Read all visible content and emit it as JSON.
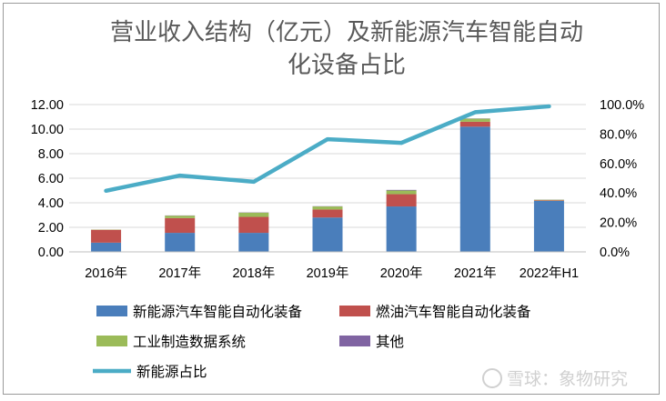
{
  "chart_data": {
    "type": "bar",
    "title_lines": [
      "营业收入结构（亿元）及新能源汽车智能自动",
      "化设备占比"
    ],
    "categories": [
      "2016年",
      "2017年",
      "2018年",
      "2019年",
      "2020年",
      "2021年",
      "2022年H1"
    ],
    "series": [
      {
        "name": "新能源汽车智能自动化装备",
        "kind": "stacked-bar",
        "axis": "left",
        "color": "#4a7ebb",
        "values": [
          0.75,
          1.55,
          1.55,
          2.8,
          3.7,
          10.2,
          4.15
        ]
      },
      {
        "name": "燃油汽车智能自动化装备",
        "kind": "stacked-bar",
        "axis": "left",
        "color": "#c0504d",
        "values": [
          1.05,
          1.2,
          1.3,
          0.65,
          1.0,
          0.4,
          0.05
        ]
      },
      {
        "name": "工业制造数据系统",
        "kind": "stacked-bar",
        "axis": "left",
        "color": "#9bbb59",
        "values": [
          0.02,
          0.2,
          0.35,
          0.25,
          0.3,
          0.25,
          0.05
        ]
      },
      {
        "name": "其他",
        "kind": "stacked-bar",
        "axis": "left",
        "color": "#8064a2",
        "values": [
          0.0,
          0.02,
          0.02,
          0.02,
          0.05,
          0.02,
          0.01
        ]
      },
      {
        "name": "新能源占比",
        "kind": "line",
        "axis": "right",
        "color": "#4bacc6",
        "values": [
          41.5,
          51.8,
          47.6,
          76.5,
          74.0,
          94.8,
          98.8
        ]
      }
    ],
    "left_axis": {
      "ylim": [
        0,
        12
      ],
      "ticks": [
        "0.00",
        "2.00",
        "4.00",
        "6.00",
        "8.00",
        "10.00",
        "12.00"
      ]
    },
    "right_axis": {
      "ylim": [
        0,
        100
      ],
      "ticks": [
        "0.0%",
        "20.0%",
        "40.0%",
        "60.0%",
        "80.0%",
        "100.0%"
      ]
    },
    "grid": true,
    "legend_position": "bottom"
  },
  "watermark": "雪球：象物研究"
}
